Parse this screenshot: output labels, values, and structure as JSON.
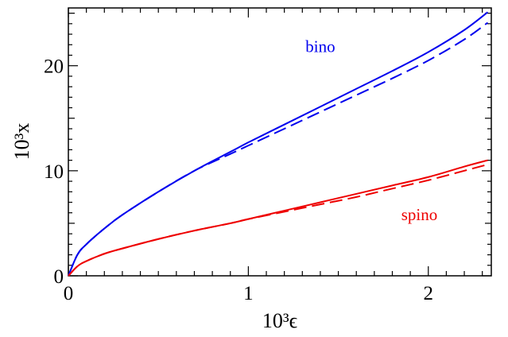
{
  "chart_data": {
    "type": "line",
    "xlabel": "10³ϵ",
    "ylabel": "10³x",
    "xlim": [
      0,
      2.35
    ],
    "ylim": [
      0,
      25.5
    ],
    "xticks": [
      0,
      1,
      2
    ],
    "xtick_labels": [
      "0",
      "1",
      "2"
    ],
    "yticks": [
      0,
      10,
      20
    ],
    "ytick_labels": [
      "0",
      "10",
      "20"
    ],
    "grid": false,
    "legend": "none",
    "series": [
      {
        "color": "#0000ee",
        "dash": "solid",
        "x": [
          0,
          0.05,
          0.1,
          0.2,
          0.3,
          0.5,
          0.7,
          0.9,
          1.0,
          1.2,
          1.4,
          1.6,
          1.8,
          2.0,
          2.2,
          2.33
        ],
        "y": [
          0,
          2.0,
          3.0,
          4.5,
          5.8,
          8.0,
          10.0,
          11.8,
          12.7,
          14.4,
          16.1,
          17.8,
          19.5,
          21.3,
          23.4,
          25.1
        ]
      },
      {
        "color": "#0000ee",
        "dash": "dashed",
        "x": [
          0,
          0.05,
          0.1,
          0.2,
          0.3,
          0.5,
          0.7,
          0.9,
          1.0,
          1.2,
          1.4,
          1.6,
          1.8,
          2.0,
          2.2,
          2.33
        ],
        "y": [
          0,
          2.0,
          3.0,
          4.5,
          5.8,
          8.0,
          10.0,
          11.6,
          12.4,
          14.0,
          15.6,
          17.2,
          18.8,
          20.5,
          22.5,
          24.1
        ]
      },
      {
        "color": "#ee0000",
        "dash": "solid",
        "x": [
          0,
          0.05,
          0.1,
          0.2,
          0.3,
          0.5,
          0.7,
          0.9,
          1.0,
          1.2,
          1.4,
          1.6,
          1.8,
          2.0,
          2.2,
          2.33
        ],
        "y": [
          0,
          0.9,
          1.4,
          2.1,
          2.6,
          3.5,
          4.3,
          5.0,
          5.4,
          6.2,
          7.0,
          7.8,
          8.6,
          9.4,
          10.4,
          11.0
        ]
      },
      {
        "color": "#ee0000",
        "dash": "dashed",
        "x": [
          0,
          0.05,
          0.1,
          0.2,
          0.3,
          0.5,
          0.7,
          0.9,
          1.0,
          1.2,
          1.4,
          1.6,
          1.8,
          2.0,
          2.2,
          2.33
        ],
        "y": [
          0,
          0.9,
          1.4,
          2.1,
          2.6,
          3.5,
          4.3,
          5.0,
          5.4,
          6.1,
          6.8,
          7.5,
          8.3,
          9.1,
          10.0,
          10.6
        ]
      }
    ],
    "annotations": [
      {
        "text": "bino",
        "color": "#0000ee",
        "x": 1.4,
        "y": 21.3
      },
      {
        "text": "spino",
        "color": "#ee0000",
        "x": 1.95,
        "y": 5.3
      }
    ]
  }
}
